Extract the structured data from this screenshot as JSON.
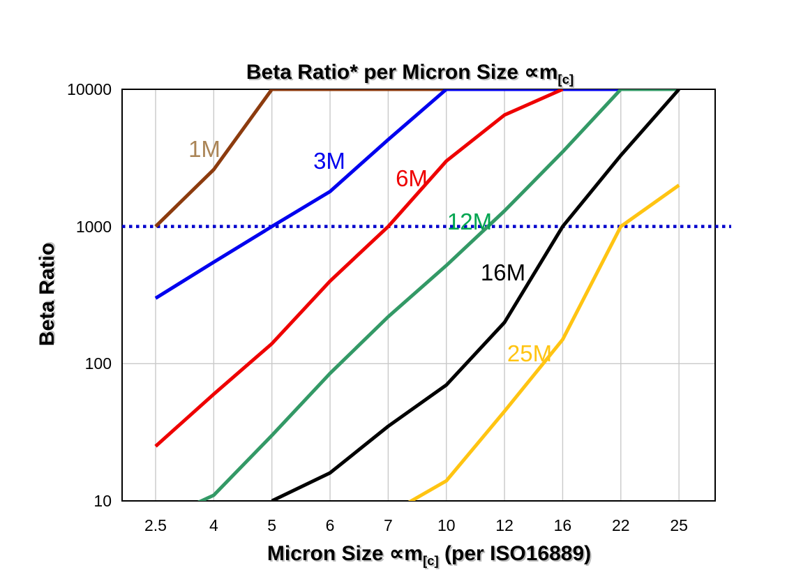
{
  "chart_data": {
    "type": "line",
    "title": {
      "main": "Beta Ratio* per Micron Size ∝m",
      "sub": "[c]"
    },
    "ylabel": "Beta Ratio",
    "xlabel": {
      "pre": "Micron Size ∝m",
      "sub": "[c]",
      "post": " (per ISO16889)"
    },
    "x_categories": [
      "2.5",
      "4",
      "5",
      "6",
      "7",
      "10",
      "12",
      "16",
      "22",
      "25"
    ],
    "y_ticks": [
      "10000",
      "1000",
      "100",
      "10"
    ],
    "y_scale": "log",
    "ylim": [
      10,
      10000
    ],
    "grid": {
      "vertical": true,
      "horizontal_values": [
        100
      ],
      "color": "#c9c9c9"
    },
    "reference_line": {
      "value": 1000,
      "style": "dotted",
      "color": "#0000cc"
    },
    "series": [
      {
        "label": "1M",
        "line_color": "#8c3b0e",
        "label_color": "#aa8456",
        "values": [
          1000,
          2600,
          10000,
          10000,
          10000,
          10000,
          null,
          null,
          null,
          null
        ]
      },
      {
        "label": "3M",
        "line_color": "#0000ee",
        "label_color": "#0000ee",
        "values": [
          300,
          550,
          1000,
          1800,
          4300,
          10000,
          10000,
          10000,
          10000,
          null
        ]
      },
      {
        "label": "6M",
        "line_color": "#ee0000",
        "label_color": "#ee0000",
        "values": [
          25,
          60,
          140,
          400,
          1000,
          3000,
          6500,
          10000,
          null,
          null
        ]
      },
      {
        "label": "12M",
        "line_color": "#339966",
        "label_color": "#00a550",
        "values": [
          7,
          11,
          30,
          85,
          220,
          520,
          1300,
          3500,
          10000,
          10000
        ]
      },
      {
        "label": "16M",
        "line_color": "#000000",
        "label_color": "#000000",
        "values": [
          null,
          null,
          10,
          16,
          35,
          70,
          200,
          1000,
          3300,
          10000
        ]
      },
      {
        "label": "25M",
        "line_color": "#ffc412",
        "label_color": "#ffc412",
        "values": [
          null,
          null,
          null,
          null,
          8,
          14,
          45,
          150,
          1000,
          2000
        ]
      }
    ]
  }
}
